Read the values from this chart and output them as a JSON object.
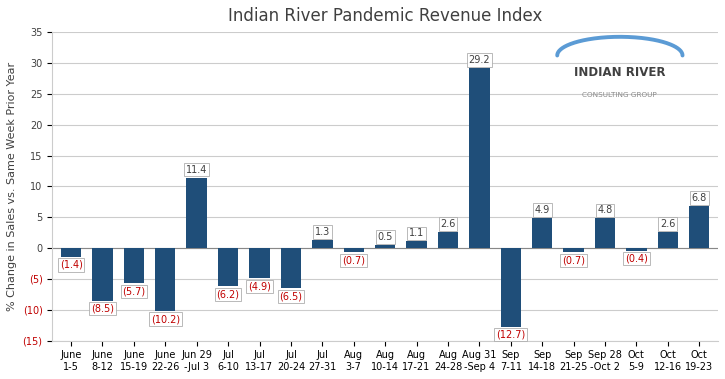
{
  "title": "Indian River Pandemic Revenue Index",
  "ylabel": "% Change in Sales vs. Same Week Prior Year",
  "categories": [
    "June\n1-5",
    "June\n8-12",
    "June\n15-19",
    "June\n22-26",
    "Jun 29\n-Jul 3",
    "Jul\n6-10",
    "Jul\n13-17",
    "Jul\n20-24",
    "Jul\n27-31",
    "Aug\n3-7",
    "Aug\n10-14",
    "Aug\n17-21",
    "Aug\n24-28",
    "Aug 31\n-Sep 4",
    "Sep\n7-11",
    "Sep\n14-18",
    "Sep\n21-25",
    "Sep 28\n-Oct 2",
    "Oct\n5-9",
    "Oct\n12-16",
    "Oct\n19-23"
  ],
  "values": [
    -1.4,
    -8.5,
    -5.7,
    -10.2,
    11.4,
    -6.2,
    -4.9,
    -6.5,
    1.3,
    -0.7,
    0.5,
    1.1,
    2.6,
    29.2,
    -12.7,
    4.9,
    -0.7,
    4.8,
    -0.4,
    2.6,
    6.8
  ],
  "bar_color": "#1F4E79",
  "negative_label_color": "#C00000",
  "positive_label_color": "#404040",
  "background_color": "#FFFFFF",
  "ylim": [
    -15,
    35
  ],
  "yticks": [
    -15,
    -10,
    -5,
    0,
    5,
    10,
    15,
    20,
    25,
    30,
    35
  ],
  "grid_color": "#CCCCCC",
  "title_fontsize": 12,
  "label_fontsize": 7.0,
  "tick_fontsize": 7,
  "ylabel_fontsize": 8,
  "logo_line_color": "#5B9BD5",
  "logo_text_color": "#404040",
  "logo_subtext_color": "#888888"
}
